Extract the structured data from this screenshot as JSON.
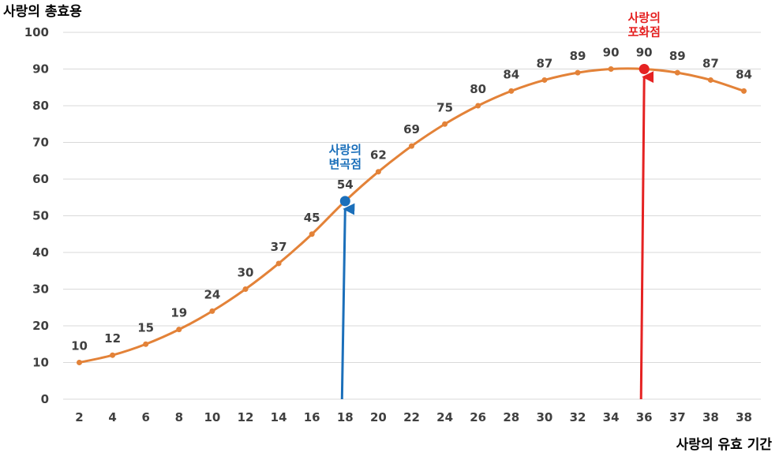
{
  "colors": {
    "series": "#e38238",
    "inflection": "#1b6fba",
    "saturation": "#e52222",
    "grid": "#d9d9d9",
    "text": "#404040"
  },
  "chart_data": {
    "type": "line",
    "title": "",
    "xlabel": "사랑의 유효 기간",
    "ylabel": "사랑의 총효용",
    "ylim": [
      0,
      100
    ],
    "yticks": [
      0,
      10,
      20,
      30,
      40,
      50,
      60,
      70,
      80,
      90,
      100
    ],
    "grid": true,
    "legend": false,
    "categories": [
      "2",
      "4",
      "6",
      "8",
      "10",
      "12",
      "14",
      "16",
      "18",
      "20",
      "22",
      "24",
      "26",
      "28",
      "30",
      "32",
      "34",
      "36",
      "37",
      "38",
      "38"
    ],
    "series": [
      {
        "values": [
          10,
          12,
          15,
          19,
          24,
          30,
          37,
          45,
          54,
          62,
          69,
          75,
          80,
          84,
          87,
          89,
          90,
          90,
          89,
          87,
          84
        ],
        "data_labels": true
      }
    ],
    "annotations": [
      {
        "text_lines": [
          "사랑의",
          "변곡점"
        ],
        "category_index": 8,
        "value": 54,
        "kind": "inflection"
      },
      {
        "text_lines": [
          "사랑의",
          "포화점"
        ],
        "category_index": 17,
        "value": 90,
        "kind": "saturation"
      }
    ]
  }
}
